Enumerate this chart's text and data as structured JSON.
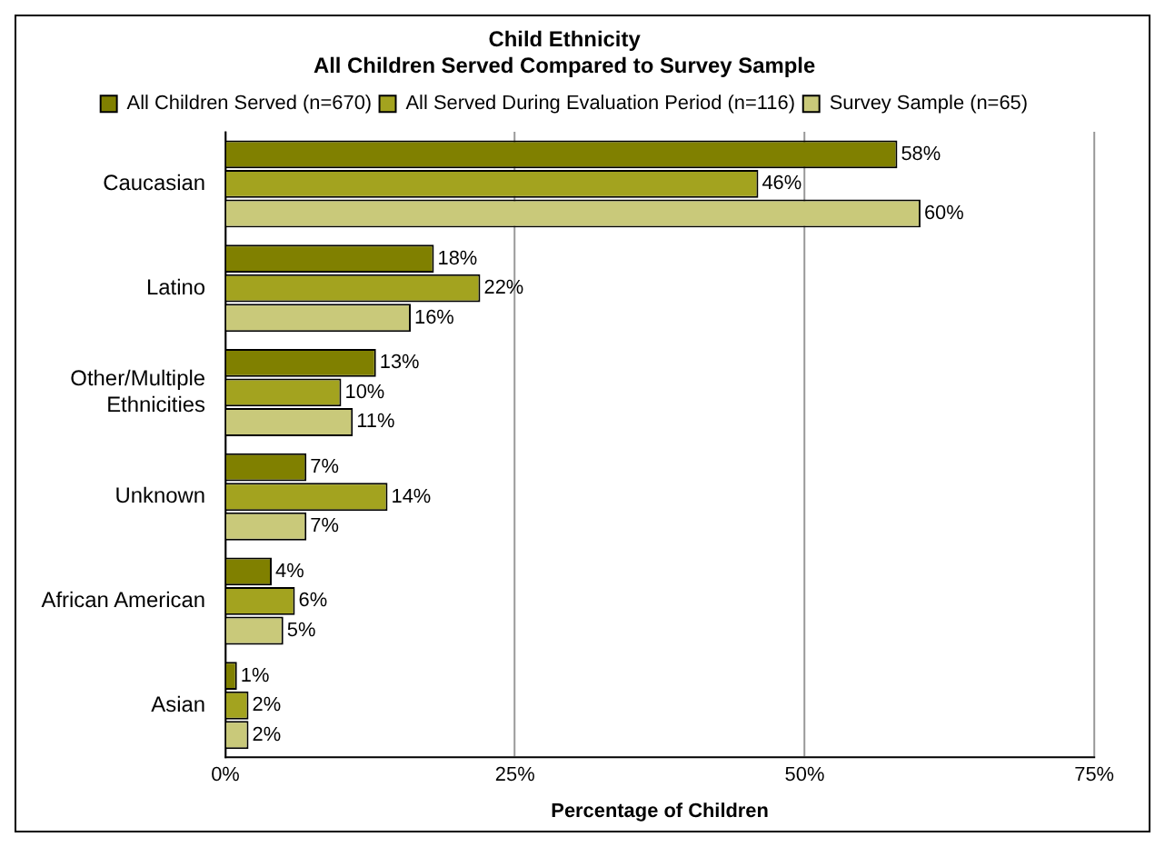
{
  "chart_data": {
    "type": "bar",
    "orientation": "horizontal",
    "title": "Child Ethnicity",
    "subtitle": "All Children Served Compared to Survey Sample",
    "xlabel": "Percentage of Children",
    "categories": [
      "Caucasian",
      "Latino",
      "Other/Multiple Ethnicities",
      "Unknown",
      "African American",
      "Asian"
    ],
    "series": [
      {
        "name": "All Children Served (n=670)",
        "color": "#808000",
        "values": [
          58,
          18,
          13,
          7,
          4,
          1
        ],
        "value_labels": [
          "58%",
          "18%",
          "13%",
          "7%",
          "4%",
          "1%"
        ]
      },
      {
        "name": "All Served During Evaluation Period (n=116)",
        "color": "#a3a31f",
        "values": [
          46,
          22,
          10,
          14,
          6,
          2
        ],
        "value_labels": [
          "46%",
          "22%",
          "10%",
          "14%",
          "6%",
          "2%"
        ]
      },
      {
        "name": "Survey Sample (n=65)",
        "color": "#c9c97a",
        "values": [
          60,
          16,
          11,
          7,
          5,
          2
        ],
        "value_labels": [
          "60%",
          "16%",
          "11%",
          "7%",
          "5%",
          "2%"
        ]
      }
    ],
    "xlim": [
      0,
      75
    ],
    "xticks": [
      {
        "value": 0,
        "label": "0%"
      },
      {
        "value": 25,
        "label": "25%"
      },
      {
        "value": 50,
        "label": "50%"
      },
      {
        "value": 75,
        "label": "75%"
      }
    ],
    "grid": "x",
    "legend": "top"
  }
}
